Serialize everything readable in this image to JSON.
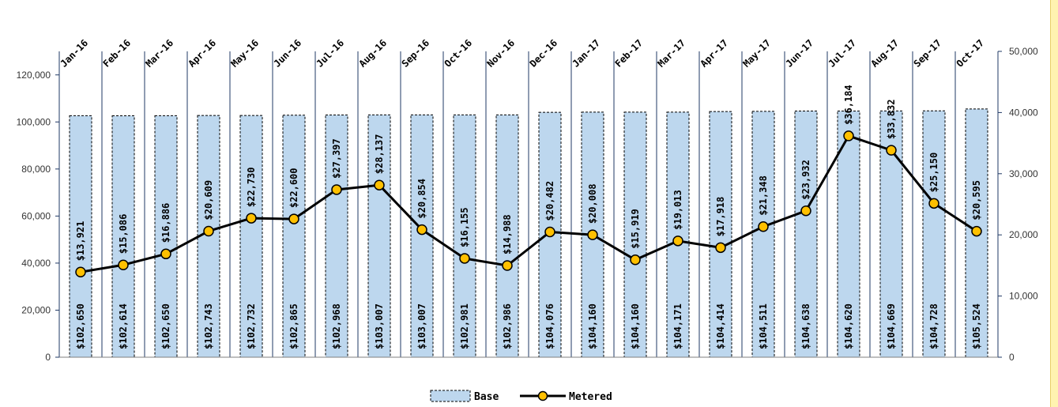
{
  "chart_data": {
    "type": "bar",
    "categories": [
      "Jan-16",
      "Feb-16",
      "Mar-16",
      "Apr-16",
      "May-16",
      "Jun-16",
      "Jul-16",
      "Aug-16",
      "Sep-16",
      "Oct-16",
      "Nov-16",
      "Dec-16",
      "Jan-17",
      "Feb-17",
      "Mar-17",
      "Apr-17",
      "May-17",
      "Jun-17",
      "Jul-17",
      "Aug-17",
      "Sep-17",
      "Oct-17"
    ],
    "series": [
      {
        "name": "Base",
        "type": "bar",
        "axis": "left",
        "color": "#bdd7ee",
        "values": [
          102650,
          102614,
          102650,
          102743,
          102732,
          102865,
          102968,
          103007,
          103007,
          102981,
          102986,
          104076,
          104160,
          104160,
          104171,
          104414,
          104511,
          104638,
          104620,
          104669,
          104728,
          105524
        ],
        "labels": [
          "$102,650",
          "$102,614",
          "$102,650",
          "$102,743",
          "$102,732",
          "$102,865",
          "$102,968",
          "$103,007",
          "$103,007",
          "$102,981",
          "$102,986",
          "$104,076",
          "$104,160",
          "$104,160",
          "$104,171",
          "$104,414",
          "$104,511",
          "$104,638",
          "$104,620",
          "$104,669",
          "$104,728",
          "$105,524"
        ]
      },
      {
        "name": "Metered",
        "type": "line",
        "axis": "right",
        "color": "#000000",
        "marker_color": "#ffc000",
        "values": [
          13921,
          15086,
          16886,
          20609,
          22730,
          22600,
          27397,
          28137,
          20854,
          16155,
          14988,
          20482,
          20008,
          15919,
          19013,
          17918,
          21348,
          23932,
          36184,
          33832,
          25150,
          20595
        ],
        "labels": [
          "$13,921",
          "$15,086",
          "$16,886",
          "$20,609",
          "$22,730",
          "$22,600",
          "$27,397",
          "$28,137",
          "$20,854",
          "$16,155",
          "$14,988",
          "$20,482",
          "$20,008",
          "$15,919",
          "$19,013",
          "$17,918",
          "$21,348",
          "$23,932",
          "$36,184",
          "$33,832",
          "$25,150",
          "$20,595"
        ]
      }
    ],
    "y_left": {
      "ylim": [
        0,
        130000
      ],
      "ticks": [
        "0",
        "20,000",
        "40,000",
        "60,000",
        "80,000",
        "100,000",
        "120,000"
      ],
      "tick_values": [
        0,
        20000,
        40000,
        60000,
        80000,
        100000,
        120000
      ]
    },
    "y_right": {
      "ylim": [
        0,
        50000
      ],
      "ticks": [
        "0",
        "10,000",
        "20,000",
        "30,000",
        "40,000",
        "50,000"
      ],
      "tick_values": [
        0,
        10000,
        20000,
        30000,
        40000,
        50000
      ]
    },
    "x_axis_position": "top",
    "legend_position": "bottom-center",
    "grid": false,
    "title": "",
    "xlabel": "",
    "ylabel": "",
    "divider_color": "#1f3864"
  }
}
